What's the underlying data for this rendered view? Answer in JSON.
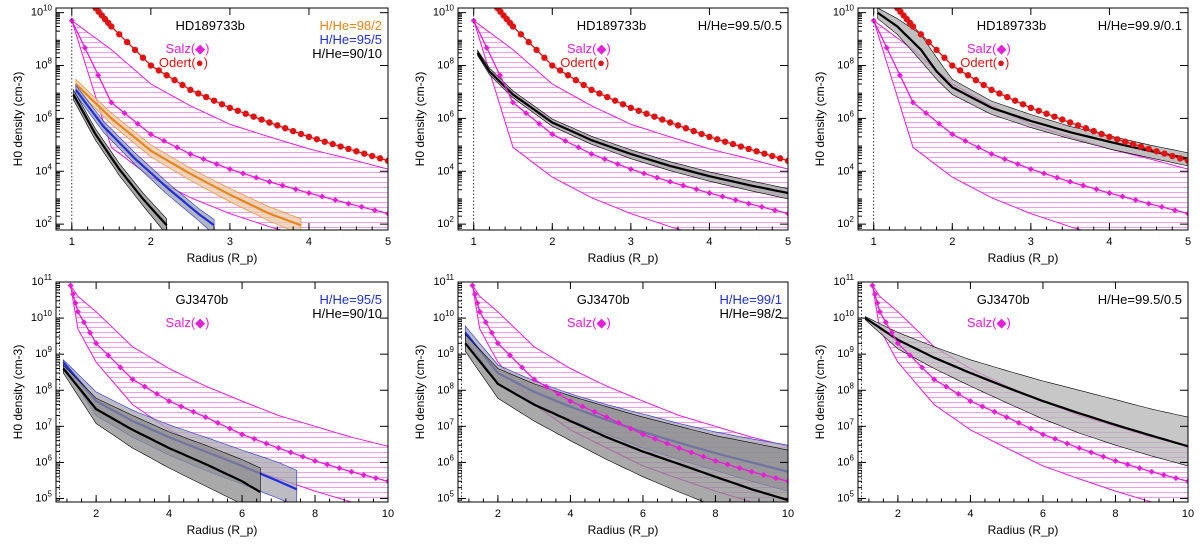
{
  "chart_data": [
    {
      "type": "line",
      "title": "HD189733b",
      "xlabel": "Radius (R_p)",
      "ylabel": "H0 density (cm-3)",
      "xlim": [
        0.8,
        5
      ],
      "ylim": [
        60,
        15000000000.0
      ],
      "yscale": "log",
      "xticks": [
        1,
        2,
        3,
        4,
        5
      ],
      "yticks": [
        100,
        10000,
        1000000,
        100000000,
        10000000000
      ],
      "model_bands": [
        {
          "label": "H/He=98/2",
          "color": "#e8861a",
          "band_fill": "#e8c9a8",
          "x": [
            1.05,
            1.5,
            2,
            2.5,
            3,
            3.5,
            3.9
          ],
          "central": [
            20000000.0,
            1000000.0,
            60000.0,
            8000.0,
            1300.0,
            250.0,
            90.0
          ],
          "lower": [
            13000000.0,
            600000.0,
            35000.0,
            4500.0,
            700.0,
            130.0,
            40.0
          ],
          "upper": [
            30000000.0,
            1600000.0,
            100000.0,
            13000.0,
            2200.0,
            450.0,
            160.0
          ]
        },
        {
          "label": "H/He=95/5",
          "color": "#1f2ee0",
          "band_fill": "#9aa0a8",
          "x": [
            1.05,
            1.4,
            1.8,
            2.2,
            2.6,
            2.8
          ],
          "central": [
            12000000.0,
            500000.0,
            30000.0,
            2500.0,
            250.0,
            90.0
          ],
          "lower": [
            8000000.0,
            300000.0,
            18000.0,
            1400.0,
            140.0,
            40.0
          ],
          "upper": [
            18000000.0,
            800000.0,
            50000.0,
            4000.0,
            400.0,
            150.0
          ]
        },
        {
          "label": "H/He=90/10",
          "color": "#000000",
          "band_fill": "#8a8a8a",
          "x": [
            1.02,
            1.3,
            1.6,
            1.9,
            2.2
          ],
          "central": [
            8000000.0,
            250000.0,
            12000.0,
            900.0,
            90.0
          ],
          "lower": [
            5000000.0,
            150000.0,
            7000.0,
            500.0,
            40.0
          ],
          "upper": [
            12000000.0,
            400000.0,
            20000.0,
            1500.0,
            160.0
          ]
        }
      ],
      "salz": {
        "label": "Salz(◆)",
        "color": "#e61fd6",
        "x": [
          1,
          1.5,
          2,
          2.5,
          3,
          3.5,
          4,
          4.5,
          5
        ],
        "central": [
          5000000000.0,
          4000000.0,
          250000.0,
          45000.0,
          12000.0,
          4000.0,
          1500.0,
          600.0,
          250.0
        ],
        "lower": [
          5000000000.0,
          80000.0,
          6000.0,
          1000.0,
          250.0,
          80.0,
          30.0,
          12.0,
          5
        ],
        "upper": [
          5000000000.0,
          400000000.0,
          20000000.0,
          3000000.0,
          600000.0,
          200000.0,
          70000.0,
          30000.0,
          12000.0
        ]
      },
      "odert": {
        "label": "Odert(●)",
        "color": "#e01414",
        "x": [
          1.3,
          1.5,
          2,
          2.5,
          3,
          3.5,
          4,
          4.5,
          5
        ],
        "values": [
          15000000000.0,
          3000000000.0,
          100000000.0,
          12000000.0,
          2500000.0,
          700000.0,
          200000.0,
          70000.0,
          25000.0
        ]
      }
    },
    {
      "type": "line",
      "title": "HD189733b",
      "xlabel": "Radius (R_p)",
      "ylabel": "H0 density (cm-3)",
      "xlim": [
        0.8,
        5
      ],
      "ylim": [
        60,
        15000000000.0
      ],
      "yscale": "log",
      "xticks": [
        1,
        2,
        3,
        4,
        5
      ],
      "yticks": [
        100,
        10000,
        1000000,
        100000000,
        10000000000
      ],
      "model_bands": [
        {
          "label": "H/He=99.5/0.5",
          "color": "#000000",
          "band_fill": "#9a9a9a",
          "x": [
            1.05,
            1.2,
            1.5,
            2,
            2.5,
            3,
            3.5,
            4,
            4.5,
            5
          ],
          "central": [
            300000000.0,
            60000000.0,
            8000000.0,
            700000.0,
            150000.0,
            45000.0,
            16000.0,
            6500.0,
            3000.0,
            1500.0
          ],
          "lower": [
            240000000.0,
            45000000.0,
            6000000.0,
            500000.0,
            105000.0,
            30000.0,
            10500.0,
            4200.0,
            1900.0,
            900.0
          ],
          "upper": [
            380000000.0,
            80000000.0,
            11000000.0,
            950000.0,
            210000.0,
            65000.0,
            23000.0,
            9500.0,
            4500.0,
            2200.0
          ]
        }
      ],
      "salz": {
        "label": "Salz(◆)",
        "color": "#e61fd6",
        "x": [
          1,
          1.5,
          2,
          2.5,
          3,
          3.5,
          4,
          4.5,
          5
        ],
        "central": [
          5000000000.0,
          4000000.0,
          250000.0,
          45000.0,
          12000.0,
          4000.0,
          1500.0,
          600.0,
          250.0
        ],
        "lower": [
          5000000000.0,
          80000.0,
          6000.0,
          1000.0,
          250.0,
          80.0,
          30.0,
          12.0,
          5
        ],
        "upper": [
          5000000000.0,
          400000000.0,
          20000000.0,
          3000000.0,
          600000.0,
          200000.0,
          70000.0,
          30000.0,
          12000.0
        ]
      },
      "odert": {
        "label": "Odert(●)",
        "color": "#e01414",
        "x": [
          1.3,
          1.5,
          2,
          2.5,
          3,
          3.5,
          4,
          4.5,
          5
        ],
        "values": [
          15000000000.0,
          3000000000.0,
          100000000.0,
          12000000.0,
          2500000.0,
          700000.0,
          200000.0,
          70000.0,
          25000.0
        ]
      }
    },
    {
      "type": "line",
      "title": "HD189733b",
      "xlabel": "Radius (R_p)",
      "ylabel": "H0 density (cm-3)",
      "xlim": [
        0.8,
        5
      ],
      "ylim": [
        60,
        15000000000.0
      ],
      "yscale": "log",
      "xticks": [
        1,
        2,
        3,
        4,
        5
      ],
      "yticks": [
        100,
        10000,
        1000000,
        100000000,
        10000000000
      ],
      "model_bands": [
        {
          "label": "H/He=99.9/0.1",
          "color": "#000000",
          "band_fill": "#aaaaaa",
          "x": [
            1.05,
            1.3,
            1.6,
            1.8,
            2,
            2.5,
            3,
            3.5,
            4,
            4.5,
            5
          ],
          "central": [
            10000000000.0,
            3000000000.0,
            400000000.0,
            60000000.0,
            15000000.0,
            2500000.0,
            800000.0,
            300000.0,
            130000.0,
            60000.0,
            30000.0
          ],
          "lower": [
            6000000000.0,
            1500000000.0,
            150000000.0,
            30000000.0,
            8000000.0,
            1400000.0,
            450000.0,
            170000.0,
            70000.0,
            33000.0,
            16000.0
          ],
          "upper": [
            15000000000.0,
            6000000000.0,
            1500000000.0,
            200000000.0,
            30000000.0,
            4500000.0,
            1400000.0,
            500000.0,
            220000.0,
            100000.0,
            50000.0
          ]
        }
      ],
      "salz": {
        "label": "Salz(◆)",
        "color": "#e61fd6",
        "x": [
          1,
          1.5,
          2,
          2.5,
          3,
          3.5,
          4,
          4.5,
          5
        ],
        "central": [
          5000000000.0,
          4000000.0,
          250000.0,
          45000.0,
          12000.0,
          4000.0,
          1500.0,
          600.0,
          250.0
        ],
        "lower": [
          5000000000.0,
          80000.0,
          6000.0,
          1000.0,
          250.0,
          80.0,
          30.0,
          12.0,
          5
        ],
        "upper": [
          5000000000.0,
          400000000.0,
          20000000.0,
          3000000.0,
          600000.0,
          200000.0,
          70000.0,
          30000.0,
          12000.0
        ]
      },
      "odert": {
        "label": "Odert(●)",
        "color": "#e01414",
        "x": [
          1.3,
          1.5,
          2,
          2.5,
          3,
          3.5,
          4,
          4.5,
          5
        ],
        "values": [
          15000000000.0,
          3000000000.0,
          100000000.0,
          12000000.0,
          2500000.0,
          700000.0,
          200000.0,
          70000.0,
          25000.0
        ]
      }
    },
    {
      "type": "line",
      "title": "GJ3470b",
      "xlabel": "Radius (R_p)",
      "ylabel": "H0 density (cm-3)",
      "xlim": [
        0.9,
        10
      ],
      "ylim": [
        80000.0,
        100000000000.0
      ],
      "yscale": "log",
      "xticks": [
        2,
        4,
        6,
        8,
        10
      ],
      "yticks": [
        100000,
        1000000,
        10000000,
        100000000,
        1000000000,
        10000000000,
        100000000000
      ],
      "model_bands": [
        {
          "label": "H/He=95/5",
          "color": "#1f2ee0",
          "band_fill": "#a6a6ae",
          "x": [
            1.1,
            2,
            3,
            4,
            5,
            6,
            7,
            7.5
          ],
          "central": [
            600000000.0,
            50000000.0,
            14000000.0,
            5000000.0,
            2000000.0,
            800000.0,
            300000.0,
            180000.0
          ],
          "lower": [
            500000000.0,
            20000000.0,
            5000000.0,
            1600000.0,
            600000.0,
            250000.0,
            100000.0,
            60000.0
          ],
          "upper": [
            700000000.0,
            90000000.0,
            28000000.0,
            11000000.0,
            5000000.0,
            2200000.0,
            1000000.0,
            600000.0
          ]
        },
        {
          "label": "H/He=90/10",
          "color": "#000000",
          "band_fill": "#8c8c8c",
          "x": [
            1.1,
            2,
            3,
            4,
            5,
            6,
            6.5
          ],
          "central": [
            400000000.0,
            30000000.0,
            8000000.0,
            2500000.0,
            900000.0,
            300000.0,
            150000.0
          ],
          "lower": [
            300000000.0,
            12000000.0,
            2500000.0,
            700000.0,
            220000.0,
            70000.0,
            30000.0
          ],
          "upper": [
            500000000.0,
            60000000.0,
            20000000.0,
            7000000.0,
            3000000.0,
            1200000.0,
            700000.0
          ]
        }
      ],
      "salz": {
        "label": "Salz(◆)",
        "color": "#e61fd6",
        "x": [
          1.3,
          1.5,
          2,
          3,
          4,
          5,
          6,
          7,
          8,
          9,
          10
        ],
        "central": [
          80000000000.0,
          15000000000.0,
          2000000000.0,
          200000000.0,
          50000000.0,
          18000000.0,
          6000000.0,
          2500000.0,
          1100000.0,
          550000.0,
          300000.0
        ],
        "lower": [
          80000000000.0,
          5000000000.0,
          600000000.0,
          40000000.0,
          8000000.0,
          2500000.0,
          800000.0,
          350000.0,
          160000.0,
          80000.0,
          40000.0
        ],
        "upper": [
          80000000000.0,
          40000000000.0,
          15000000000.0,
          1600000000.0,
          400000000.0,
          130000000.0,
          50000000.0,
          20000000.0,
          10000000.0,
          5000000.0,
          2800000.0
        ]
      }
    },
    {
      "type": "line",
      "title": "GJ3470b",
      "xlabel": "Radius (R_p)",
      "ylabel": "H0 density (cm-3)",
      "xlim": [
        0.9,
        10
      ],
      "ylim": [
        80000.0,
        100000000000.0
      ],
      "yscale": "log",
      "xticks": [
        2,
        4,
        6,
        8,
        10
      ],
      "yticks": [
        100000,
        1000000,
        10000000,
        100000000,
        1000000000,
        10000000000,
        100000000000
      ],
      "model_bands": [
        {
          "label": "H/He=99/1",
          "color": "#1f2ee0",
          "band_fill": "#a6a6ae",
          "x": [
            1.1,
            2,
            3,
            4,
            5,
            6,
            7,
            8,
            9,
            10
          ],
          "central": [
            4000000000.0,
            300000000.0,
            90000000.0,
            35000000.0,
            15000000.0,
            7000000.0,
            3500000.0,
            1800000.0,
            1000000.0,
            550000.0
          ],
          "lower": [
            2500000000.0,
            160000000.0,
            40000000.0,
            15000000.0,
            6000000.0,
            2500000.0,
            1200000.0,
            600000.0,
            300000.0,
            160000.0
          ],
          "upper": [
            6000000000.0,
            500000000.0,
            180000000.0,
            80000000.0,
            40000000.0,
            22000000.0,
            12000000.0,
            7000000.0,
            4500000.0,
            3000000.0
          ]
        },
        {
          "label": "H/He=98/2",
          "color": "#000000",
          "band_fill": "#8c8c8c",
          "x": [
            1.1,
            2,
            3,
            4,
            5,
            6,
            7,
            8,
            9,
            10
          ],
          "central": [
            2000000000.0,
            150000000.0,
            40000000.0,
            14000000.0,
            5000000.0,
            2000000.0,
            900000.0,
            400000.0,
            180000.0,
            90000.0
          ],
          "lower": [
            1200000000.0,
            60000000.0,
            14000000.0,
            4000000.0,
            1200000.0,
            400000.0,
            150000.0,
            60000.0,
            25000.0,
            10000.0
          ],
          "upper": [
            3500000000.0,
            400000000.0,
            150000000.0,
            70000000.0,
            35000000.0,
            18000000.0,
            10000000.0,
            5500000.0,
            3500000.0,
            2200000.0
          ]
        }
      ],
      "salz": {
        "label": "Salz(◆)",
        "color": "#e61fd6",
        "x": [
          1.3,
          1.5,
          2,
          3,
          4,
          5,
          6,
          7,
          8,
          9,
          10
        ],
        "central": [
          80000000000.0,
          15000000000.0,
          2000000000.0,
          200000000.0,
          50000000.0,
          18000000.0,
          6000000.0,
          2500000.0,
          1100000.0,
          550000.0,
          300000.0
        ],
        "lower": [
          80000000000.0,
          5000000000.0,
          600000000.0,
          40000000.0,
          8000000.0,
          2500000.0,
          800000.0,
          350000.0,
          160000.0,
          80000.0,
          40000.0
        ],
        "upper": [
          80000000000.0,
          40000000000.0,
          15000000000.0,
          1600000000.0,
          400000000.0,
          130000000.0,
          50000000.0,
          20000000.0,
          10000000.0,
          5000000.0,
          2800000.0
        ]
      }
    },
    {
      "type": "line",
      "title": "GJ3470b",
      "xlabel": "Radius (R_p)",
      "ylabel": "H0 density (cm-3)",
      "xlim": [
        0.9,
        10
      ],
      "ylim": [
        80000.0,
        100000000000.0
      ],
      "yscale": "log",
      "xticks": [
        2,
        4,
        6,
        8,
        10
      ],
      "yticks": [
        100000,
        1000000,
        10000000,
        100000000,
        1000000000,
        10000000000,
        100000000000
      ],
      "model_bands": [
        {
          "label": "H/He=99.5/0.5",
          "color": "#000000",
          "band_fill": "#b4b4b4",
          "x": [
            1.1,
            2,
            3,
            4,
            5,
            6,
            7,
            8,
            9,
            10
          ],
          "central": [
            10000000000.0,
            2500000000.0,
            800000000.0,
            300000000.0,
            120000000.0,
            50000000.0,
            23000000.0,
            11000000.0,
            5500000.0,
            2800000.0
          ],
          "lower": [
            9000000000.0,
            1400000000.0,
            400000000.0,
            130000000.0,
            45000000.0,
            16000000.0,
            6500000.0,
            3000000.0,
            1500000.0,
            800000.0
          ],
          "upper": [
            11000000000.0,
            4000000000.0,
            1600000000.0,
            700000000.0,
            350000000.0,
            180000000.0,
            100000000.0,
            55000000.0,
            30000000.0,
            18000000.0
          ]
        }
      ],
      "salz": {
        "label": "Salz(◆)",
        "color": "#e61fd6",
        "x": [
          1.3,
          1.5,
          2,
          3,
          4,
          5,
          6,
          7,
          8,
          9,
          10
        ],
        "central": [
          80000000000.0,
          15000000000.0,
          2000000000.0,
          200000000.0,
          50000000.0,
          18000000.0,
          6000000.0,
          2500000.0,
          1100000.0,
          550000.0,
          300000.0
        ],
        "lower": [
          80000000000.0,
          5000000000.0,
          600000000.0,
          40000000.0,
          8000000.0,
          2500000.0,
          800000.0,
          350000.0,
          160000.0,
          80000.0,
          40000.0
        ],
        "upper": [
          80000000000.0,
          40000000000.0,
          15000000000.0,
          1600000000.0,
          400000000.0,
          130000000.0,
          50000000.0,
          20000000.0,
          10000000.0,
          5000000.0,
          2800000.0
        ]
      }
    }
  ]
}
